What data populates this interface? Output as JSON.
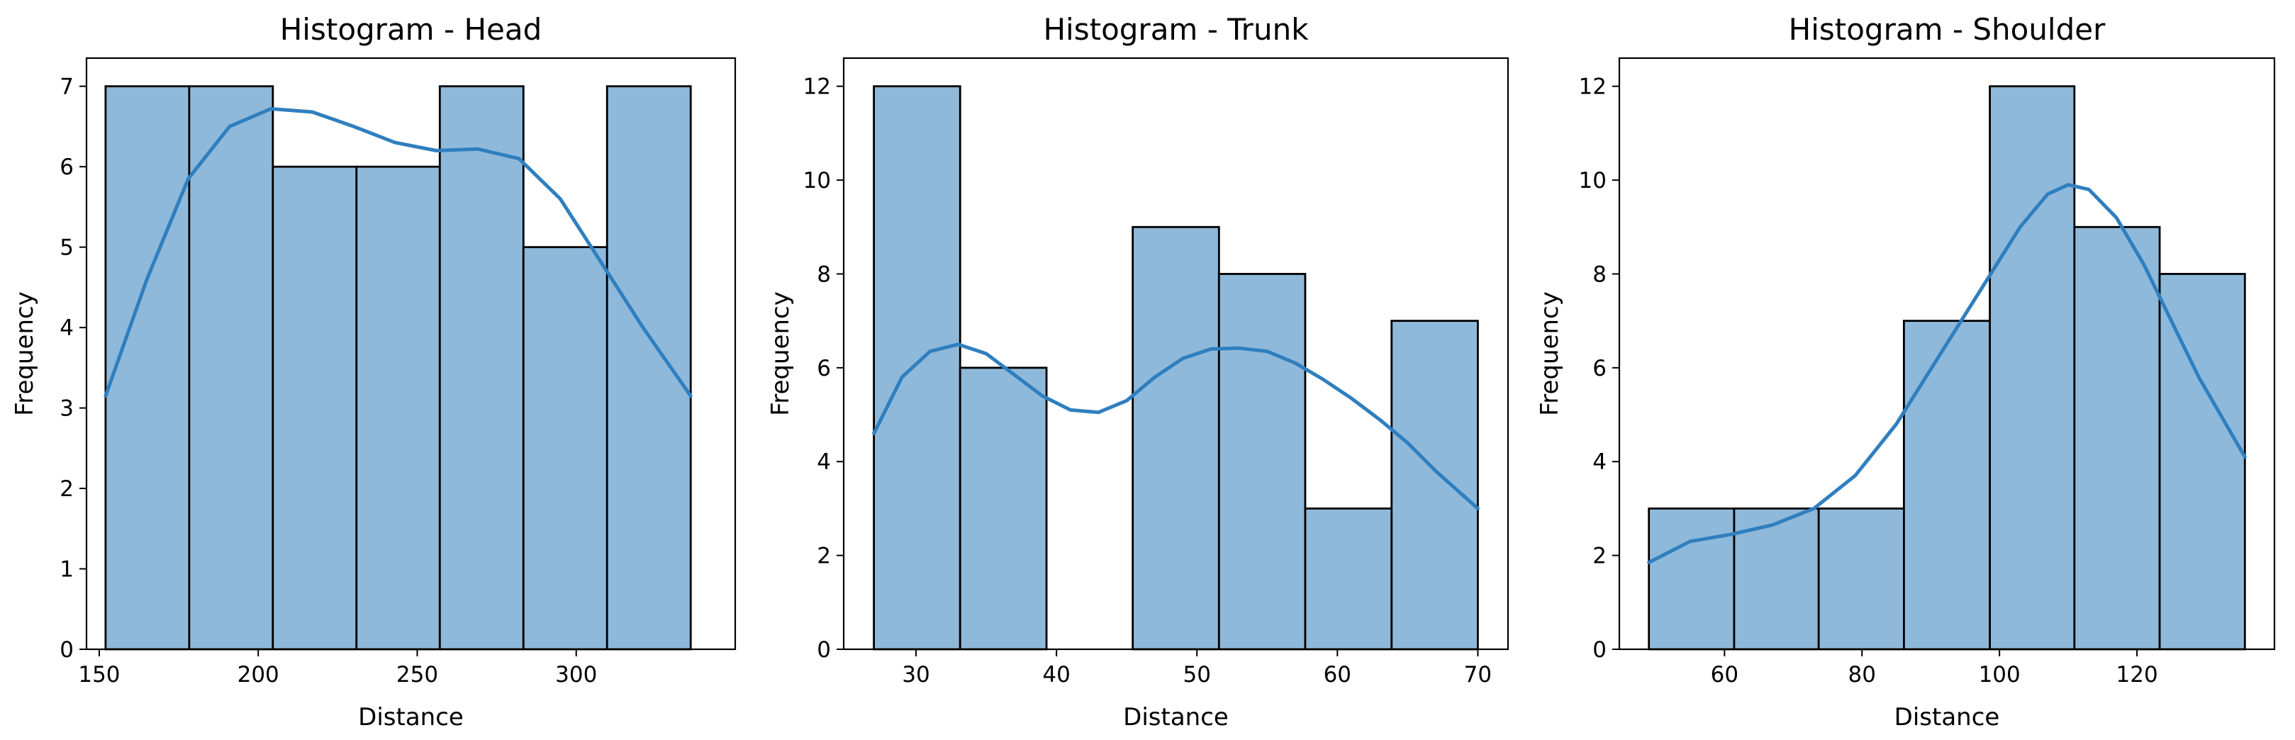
{
  "colors": {
    "bar_fill": "#8fb9da",
    "kde_line": "#2f7fbf",
    "edge": "#000000"
  },
  "chart_data": [
    {
      "type": "bar",
      "title": "Histogram - Head",
      "xlabel": "Distance",
      "ylabel": "Frequency",
      "bin_edges": [
        152,
        178.3,
        204.6,
        230.9,
        257.1,
        283.4,
        309.7,
        336
      ],
      "values": [
        7,
        7,
        6,
        6,
        7,
        5,
        7
      ],
      "kde": {
        "x": [
          152,
          165,
          178,
          191,
          204,
          217,
          230,
          243,
          256,
          269,
          282,
          295,
          308,
          321,
          336
        ],
        "y": [
          3.15,
          4.6,
          5.85,
          6.5,
          6.72,
          6.68,
          6.5,
          6.3,
          6.2,
          6.22,
          6.1,
          5.6,
          4.8,
          4.0,
          3.15
        ]
      },
      "xlim": [
        146,
        350
      ],
      "ylim": [
        0,
        7.35
      ],
      "xticks": [
        150,
        200,
        250,
        300
      ],
      "yticks": [
        0,
        1,
        2,
        3,
        4,
        5,
        6,
        7
      ]
    },
    {
      "type": "bar",
      "title": "Histogram - Trunk",
      "xlabel": "Distance",
      "ylabel": "Frequency",
      "bin_edges": [
        27,
        33.14,
        39.29,
        45.43,
        51.57,
        57.71,
        63.86,
        70
      ],
      "values": [
        12,
        6,
        0,
        9,
        8,
        3,
        7
      ],
      "kde": {
        "x": [
          27,
          29,
          31,
          33,
          35,
          37,
          39,
          41,
          43,
          45,
          47,
          49,
          51,
          53,
          55,
          57,
          59,
          61,
          63,
          65,
          67,
          70
        ],
        "y": [
          4.6,
          5.8,
          6.35,
          6.5,
          6.3,
          5.85,
          5.4,
          5.1,
          5.05,
          5.3,
          5.8,
          6.2,
          6.4,
          6.42,
          6.35,
          6.1,
          5.75,
          5.35,
          4.9,
          4.4,
          3.8,
          3.0
        ]
      },
      "xlim": [
        24.85,
        72.15
      ],
      "ylim": [
        0,
        12.6
      ],
      "xticks": [
        30,
        40,
        50,
        60,
        70
      ],
      "yticks": [
        0,
        2,
        4,
        6,
        8,
        10,
        12
      ]
    },
    {
      "type": "bar",
      "title": "Histogram - Shoulder",
      "xlabel": "Distance",
      "ylabel": "Frequency",
      "bin_edges": [
        49,
        61.4,
        73.7,
        86.1,
        98.6,
        110.9,
        123.3,
        135.7
      ],
      "values": [
        3,
        3,
        3,
        7,
        12,
        9,
        8
      ],
      "kde": {
        "x": [
          49,
          55,
          61,
          67,
          73,
          79,
          85,
          91,
          97,
          103,
          107,
          110,
          113,
          117,
          121,
          125,
          129,
          135.7
        ],
        "y": [
          1.85,
          2.3,
          2.45,
          2.65,
          3.0,
          3.7,
          4.8,
          6.2,
          7.6,
          9.0,
          9.7,
          9.9,
          9.8,
          9.2,
          8.2,
          7.0,
          5.8,
          4.1
        ]
      },
      "xlim": [
        44.7,
        140
      ],
      "ylim": [
        0,
        12.6
      ],
      "xticks": [
        60,
        80,
        100,
        120
      ],
      "yticks": [
        0,
        2,
        4,
        6,
        8,
        10,
        12
      ]
    }
  ]
}
